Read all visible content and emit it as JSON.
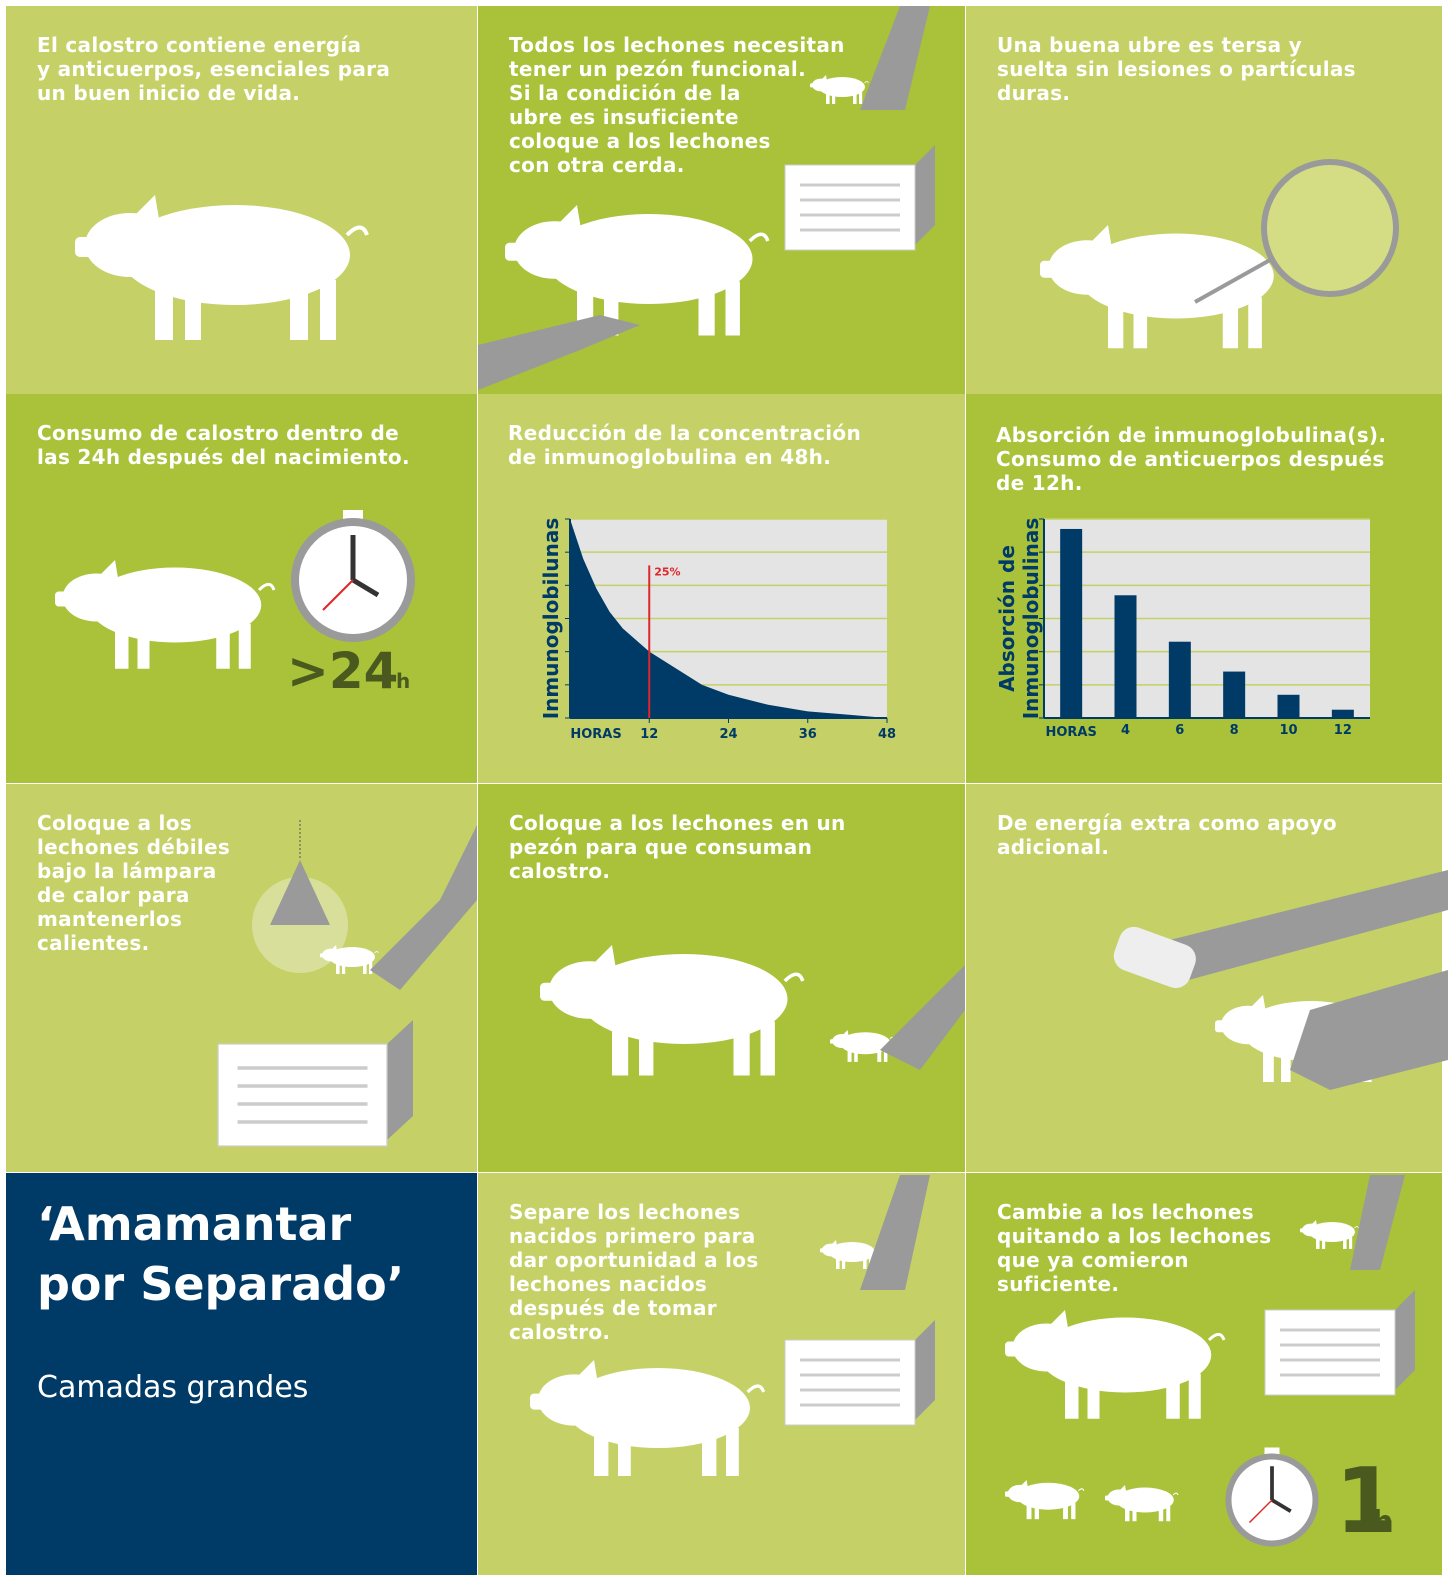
{
  "panels": [
    {
      "lines": [
        "El calostro contiene energía",
        "y anticuerpos, esenciales para",
        "un buen inicio de vida."
      ]
    },
    {
      "lines": [
        "Todos los lechones necesitan",
        "tener un pezón funcional.",
        "Si la condición de la",
        "ubre es insuficiente",
        "coloque a los lechones",
        "con otra cerda."
      ]
    },
    {
      "lines": [
        "Una buena ubre es tersa y",
        "suelta sin lesiones o partículas",
        "duras."
      ]
    },
    {
      "lines": [
        "Consumo de calostro dentro de",
        "las 24h después del nacimiento."
      ]
    },
    {
      "lines": [
        "Coloque a los",
        "lechones débiles",
        "bajo la lámpara",
        "de calor para",
        "mantenerlos",
        "calientes."
      ]
    },
    {
      "lines": [
        "Coloque a los lechones en un",
        "pezón para que consuman",
        "calostro."
      ]
    },
    {
      "lines": [
        "De energía extra como apoyo",
        "adicional."
      ]
    },
    {
      "lines": [
        "Separe los lechones",
        "nacidos primero para",
        "dar oportunidad a los",
        "lechones nacidos",
        "después de tomar",
        "calostro."
      ]
    },
    {
      "lines": [
        "Cambie a los lechones",
        "quitando a los lechones",
        "que ya comieron",
        "suficiente."
      ]
    }
  ],
  "title": {
    "lines": [
      "‘Amamantar",
      "por Separado’"
    ]
  },
  "subtitle": "Camadas grandes",
  "clock_1": {
    "value": ">24",
    "unit": "h"
  },
  "clock_2": {
    "value": "1",
    "unit": "h"
  },
  "chart_data": [
    {
      "type": "area",
      "title": [
        "Reducción de la concentración",
        "de inmunoglobulina en 48h."
      ],
      "ylabel": "Inmunoglobilunas",
      "xlabel": "HORAS",
      "x": [
        0,
        2,
        4,
        6,
        8,
        12,
        16,
        20,
        24,
        30,
        36,
        42,
        48
      ],
      "values": [
        6,
        4.8,
        3.9,
        3.2,
        2.7,
        2.0,
        1.5,
        1.0,
        0.7,
        0.4,
        0.2,
        0.1,
        0
      ],
      "color": "#003a66",
      "xlim": [
        0,
        48
      ],
      "ylim": [
        0,
        6
      ],
      "xticks": [
        12,
        24,
        36,
        48
      ],
      "yticks": [
        0,
        1,
        2,
        3,
        4,
        5,
        6
      ],
      "marker": {
        "x": 12,
        "y": 4.6,
        "label": "25%",
        "color": "#e0252b"
      }
    },
    {
      "type": "bar",
      "title": [
        "Absorción de inmunoglobulina(s).",
        "Consumo de anticuerpos después",
        "de 12h."
      ],
      "ylabel": [
        "Absorción de",
        "Inmunoglobulinas"
      ],
      "xlabel": "HORAS",
      "categories": [
        null,
        "4",
        "6",
        "8",
        "10",
        "12"
      ],
      "values": [
        5.7,
        3.7,
        2.3,
        1.4,
        0.7,
        0.25
      ],
      "color": "#003a66",
      "ylim": [
        0,
        6
      ],
      "yticks": [
        0,
        1,
        2,
        3,
        4,
        5,
        6
      ]
    }
  ]
}
